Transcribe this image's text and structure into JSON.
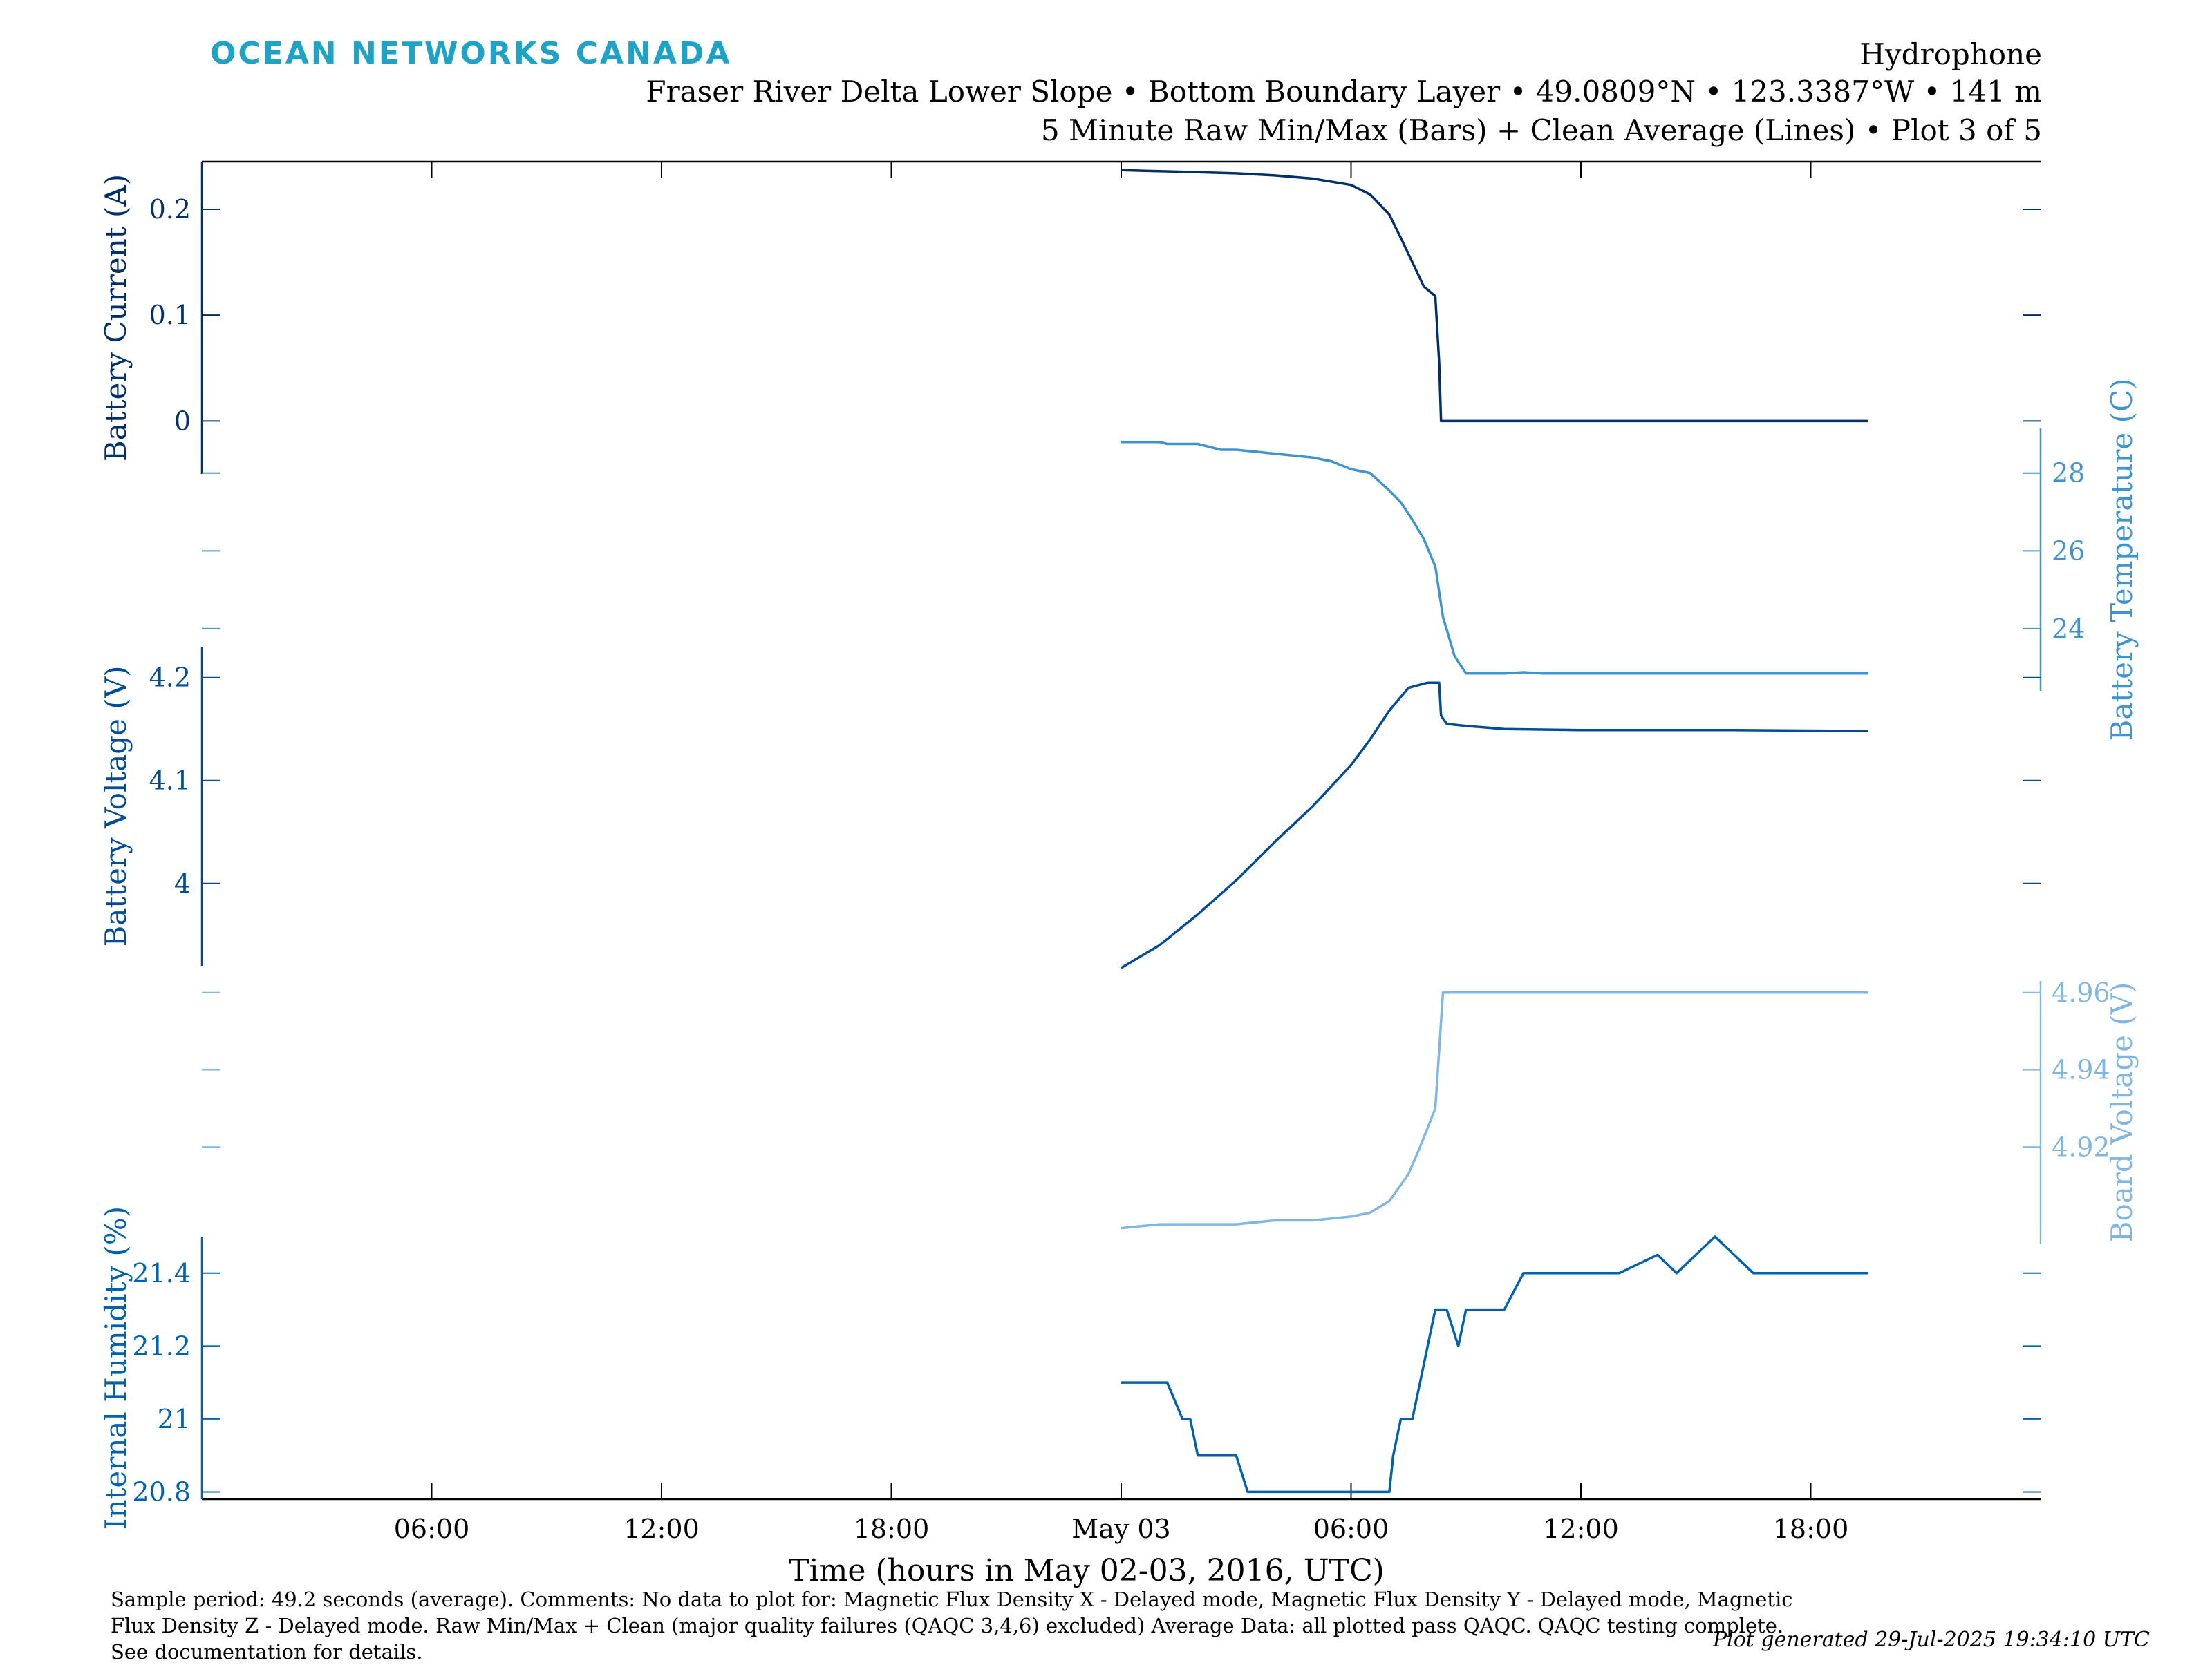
{
  "header": {
    "logo": "OCEAN NETWORKS CANADA",
    "title": "Hydrophone",
    "location": "Fraser River Delta Lower Slope • Bottom Boundary Layer • 49.0809°N • 123.3387°W • 141 m",
    "subtitle": "5 Minute Raw Min/Max (Bars) + Clean Average (Lines) • Plot 3 of 5"
  },
  "footer": {
    "note": "Sample period: 49.2 seconds (average). Comments: No data to plot for: Magnetic Flux Density X - Delayed mode, Magnetic Flux Density Y - Delayed mode, Magnetic Flux Density Z - Delayed mode. Raw Min/Max + Clean (major quality failures (QAQC 3,4,6) excluded) Average Data: all plotted pass QAQC. QAQC testing complete. See documentation for details.",
    "generated": "Plot generated 29-Jul-2025 19:34:10 UTC"
  },
  "chart_data": {
    "type": "line",
    "xlabel": "Time (hours in May 02-03, 2016, UTC)",
    "x_unit": "hours since May 02 00:00 UTC",
    "xlim": [
      0,
      48
    ],
    "x_ticks": [
      {
        "x": 6,
        "label": "06:00"
      },
      {
        "x": 12,
        "label": "12:00"
      },
      {
        "x": 18,
        "label": "18:00"
      },
      {
        "x": 24,
        "label": "May 03"
      },
      {
        "x": 30,
        "label": "06:00"
      },
      {
        "x": 36,
        "label": "12:00"
      },
      {
        "x": 42,
        "label": "18:00"
      }
    ],
    "grid": false,
    "panels": [
      {
        "name": "battery-current",
        "side": "left",
        "ylabel": "Battery Current (A)",
        "color": "#002f6c",
        "ylim": [
          -0.05,
          0.245
        ],
        "y_ticks": [
          {
            "v": 0,
            "label": "0"
          },
          {
            "v": 0.1,
            "label": "0.1"
          },
          {
            "v": 0.2,
            "label": "0.2"
          }
        ],
        "x": [
          24.0,
          25.0,
          26.0,
          27.0,
          28.0,
          29.0,
          30.0,
          30.5,
          31.0,
          31.3,
          31.6,
          31.9,
          32.2,
          32.3,
          32.35,
          32.45,
          33.0,
          35.0,
          38.0,
          41.0,
          43.5
        ],
        "y": [
          0.237,
          0.236,
          0.235,
          0.234,
          0.232,
          0.229,
          0.223,
          0.214,
          0.195,
          0.173,
          0.15,
          0.127,
          0.118,
          0.055,
          0.0,
          0.0,
          0.0,
          0.0,
          0.0,
          0.0,
          0.0
        ]
      },
      {
        "name": "battery-temperature",
        "side": "right",
        "ylabel": "Battery Temperature (C)",
        "color": "#3f93cf",
        "ylim": [
          22.4,
          29.15
        ],
        "y_ticks": [
          {
            "v": 24,
            "label": "24"
          },
          {
            "v": 26,
            "label": "26"
          },
          {
            "v": 28,
            "label": "28"
          }
        ],
        "x": [
          24.0,
          25.0,
          25.2,
          26.0,
          26.6,
          27.0,
          27.5,
          28.0,
          28.5,
          29.0,
          29.5,
          30.0,
          30.5,
          31.0,
          31.3,
          31.6,
          31.9,
          32.2,
          32.4,
          32.7,
          33.0,
          33.5,
          34.0,
          34.5,
          35.0,
          36.0,
          38.0,
          40.0,
          43.5
        ],
        "y": [
          28.8,
          28.8,
          28.75,
          28.75,
          28.6,
          28.6,
          28.55,
          28.5,
          28.45,
          28.4,
          28.3,
          28.1,
          28.0,
          27.55,
          27.25,
          26.8,
          26.3,
          25.6,
          24.3,
          23.3,
          22.85,
          22.85,
          22.85,
          22.88,
          22.85,
          22.85,
          22.85,
          22.85,
          22.85
        ]
      },
      {
        "name": "battery-voltage",
        "side": "left",
        "ylabel": "Battery Voltage (V)",
        "color": "#004c97",
        "ylim": [
          3.92,
          4.23
        ],
        "y_ticks": [
          {
            "v": 4.0,
            "label": "4"
          },
          {
            "v": 4.1,
            "label": "4.1"
          },
          {
            "v": 4.2,
            "label": "4.2"
          }
        ],
        "x": [
          24.0,
          25.0,
          26.0,
          27.0,
          28.0,
          29.0,
          30.0,
          30.5,
          31.0,
          31.5,
          32.0,
          32.3,
          32.35,
          32.5,
          33.0,
          34.0,
          36.0,
          38.0,
          40.0,
          43.5
        ],
        "y": [
          3.918,
          3.94,
          3.97,
          4.003,
          4.04,
          4.075,
          4.115,
          4.14,
          4.168,
          4.19,
          4.195,
          4.195,
          4.163,
          4.155,
          4.153,
          4.15,
          4.149,
          4.149,
          4.149,
          4.148
        ]
      },
      {
        "name": "board-voltage",
        "side": "right",
        "ylabel": "Board Voltage (V)",
        "color": "#7fb7e2",
        "ylim": [
          4.895,
          4.963
        ],
        "y_ticks": [
          {
            "v": 4.92,
            "label": "4.92"
          },
          {
            "v": 4.94,
            "label": "4.94"
          },
          {
            "v": 4.96,
            "label": "4.96"
          }
        ],
        "x": [
          24.0,
          25.0,
          26.0,
          27.0,
          28.0,
          29.0,
          30.0,
          30.5,
          31.0,
          31.5,
          31.8,
          32.0,
          32.2,
          32.4,
          33.0,
          34.0,
          36.0,
          38.0,
          40.0,
          43.5
        ],
        "y": [
          4.899,
          4.9,
          4.9,
          4.9,
          4.901,
          4.901,
          4.902,
          4.903,
          4.906,
          4.913,
          4.92,
          4.925,
          4.93,
          4.96,
          4.96,
          4.96,
          4.96,
          4.96,
          4.96,
          4.96
        ]
      },
      {
        "name": "internal-humidity",
        "side": "left",
        "ylabel": "Internal Humidity (%)",
        "color": "#0061ad",
        "ylim": [
          20.78,
          21.5
        ],
        "y_ticks": [
          {
            "v": 20.8,
            "label": "20.8"
          },
          {
            "v": 21.0,
            "label": "21"
          },
          {
            "v": 21.2,
            "label": "21.2"
          },
          {
            "v": 21.4,
            "label": "21.4"
          }
        ],
        "x": [
          24.0,
          25.2,
          25.4,
          25.6,
          25.8,
          26.0,
          26.3,
          27.0,
          27.3,
          27.4,
          28.0,
          29.0,
          30.0,
          31.0,
          31.1,
          31.3,
          31.6,
          31.8,
          32.0,
          32.2,
          32.5,
          32.8,
          33.0,
          33.3,
          33.6,
          34.0,
          34.5,
          35.0,
          35.5,
          36.0,
          37.0,
          38.0,
          38.5,
          39.0,
          39.5,
          40.0,
          40.5,
          41.0,
          43.5
        ],
        "y": [
          21.1,
          21.1,
          21.05,
          21.0,
          21.0,
          20.9,
          20.9,
          20.9,
          20.8,
          20.8,
          20.8,
          20.8,
          20.8,
          20.8,
          20.9,
          21.0,
          21.0,
          21.1,
          21.2,
          21.3,
          21.3,
          21.2,
          21.3,
          21.3,
          21.3,
          21.3,
          21.4,
          21.4,
          21.4,
          21.4,
          21.4,
          21.45,
          21.4,
          21.45,
          21.5,
          21.45,
          21.4,
          21.4,
          21.4
        ]
      }
    ]
  }
}
